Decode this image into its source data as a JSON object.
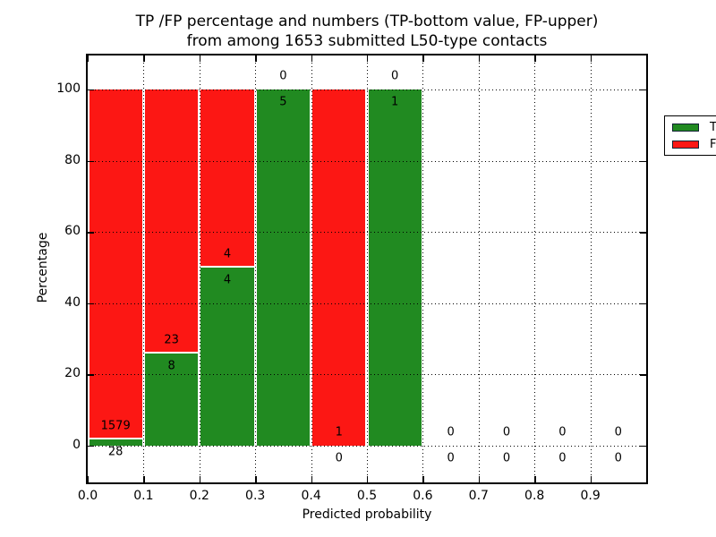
{
  "title": {
    "line1": "TP /FP percentage and numbers (TP-bottom value, FP-upper)",
    "line2": "from among 1653 submitted L50-type contacts"
  },
  "axes": {
    "xlabel": "Predicted probability",
    "ylabel": "Percentage",
    "x_tick_labels": [
      "0.0",
      "0.1",
      "0.2",
      "0.3",
      "0.4",
      "0.5",
      "0.6",
      "0.7",
      "0.8",
      "0.9"
    ],
    "x_tick_values": [
      0.0,
      0.1,
      0.2,
      0.3,
      0.4,
      0.5,
      0.6,
      0.7,
      0.8,
      0.9
    ],
    "y_tick_labels": [
      "0",
      "20",
      "40",
      "60",
      "80",
      "100"
    ],
    "y_tick_values": [
      0,
      20,
      40,
      60,
      80,
      100
    ]
  },
  "legend": {
    "items": [
      {
        "label": "TP",
        "color": "#218a21"
      },
      {
        "label": "FP",
        "color": "#fc1714"
      }
    ]
  },
  "chart_data": {
    "type": "bar",
    "stacked": true,
    "title": "TP /FP percentage and numbers (TP-bottom value, FP-upper) from among 1653 submitted L50-type contacts",
    "xlabel": "Predicted probability",
    "ylabel": "Percentage",
    "total_contacts": 1653,
    "xlim": [
      0.0,
      1.0
    ],
    "ylim": [
      -10.5,
      109.5
    ],
    "grid": "dotted",
    "legend_position": "upper right",
    "tp_color": "#218a21",
    "fp_color": "#fc1714",
    "bins": [
      {
        "x0": 0.0,
        "x1": 0.1,
        "tp": 28,
        "fp": 1579
      },
      {
        "x0": 0.1,
        "x1": 0.2,
        "tp": 8,
        "fp": 23
      },
      {
        "x0": 0.2,
        "x1": 0.3,
        "tp": 4,
        "fp": 4
      },
      {
        "x0": 0.3,
        "x1": 0.4,
        "tp": 5,
        "fp": 0
      },
      {
        "x0": 0.4,
        "x1": 0.5,
        "tp": 0,
        "fp": 1
      },
      {
        "x0": 0.5,
        "x1": 0.6,
        "tp": 1,
        "fp": 0
      },
      {
        "x0": 0.6,
        "x1": 0.7,
        "tp": 0,
        "fp": 0
      },
      {
        "x0": 0.7,
        "x1": 0.8,
        "tp": 0,
        "fp": 0
      },
      {
        "x0": 0.8,
        "x1": 0.9,
        "tp": 0,
        "fp": 0
      },
      {
        "x0": 0.9,
        "x1": 1.0,
        "tp": 0,
        "fp": 0
      }
    ]
  }
}
